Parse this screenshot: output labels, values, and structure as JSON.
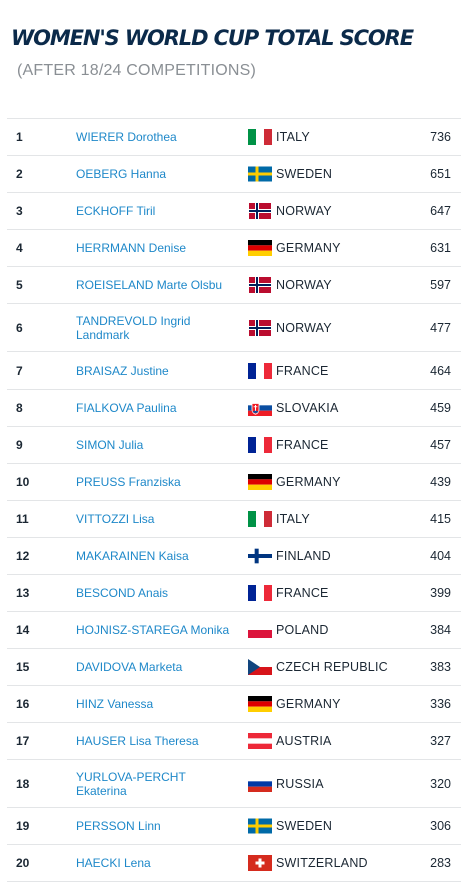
{
  "header": {
    "title": "WOMEN'S WORLD CUP TOTAL SCORE",
    "subtitle": "(AFTER 18/24 COMPETITIONS)"
  },
  "rows": [
    {
      "rank": "1",
      "name": "WIERER Dorothea",
      "country": "ITALY",
      "flag": "italy-flag",
      "score": "736"
    },
    {
      "rank": "2",
      "name": "OEBERG Hanna",
      "country": "SWEDEN",
      "flag": "sweden-flag",
      "score": "651"
    },
    {
      "rank": "3",
      "name": "ECKHOFF Tiril",
      "country": "NORWAY",
      "flag": "norway-flag",
      "score": "647"
    },
    {
      "rank": "4",
      "name": "HERRMANN Denise",
      "country": "GERMANY",
      "flag": "germany-flag",
      "score": "631"
    },
    {
      "rank": "5",
      "name": "ROEISELAND Marte Olsbu",
      "country": "NORWAY",
      "flag": "norway-flag",
      "score": "597"
    },
    {
      "rank": "6",
      "name": "TANDREVOLD Ingrid Landmark",
      "country": "NORWAY",
      "flag": "norway-flag",
      "score": "477"
    },
    {
      "rank": "7",
      "name": "BRAISAZ Justine",
      "country": "FRANCE",
      "flag": "france-flag",
      "score": "464"
    },
    {
      "rank": "8",
      "name": "FIALKOVA Paulina",
      "country": "SLOVAKIA",
      "flag": "slovakia-flag",
      "score": "459"
    },
    {
      "rank": "9",
      "name": "SIMON Julia",
      "country": "FRANCE",
      "flag": "france-flag",
      "score": "457"
    },
    {
      "rank": "10",
      "name": "PREUSS Franziska",
      "country": "GERMANY",
      "flag": "germany-flag",
      "score": "439"
    },
    {
      "rank": "11",
      "name": "VITTOZZI Lisa",
      "country": "ITALY",
      "flag": "italy-flag",
      "score": "415"
    },
    {
      "rank": "12",
      "name": "MAKARAINEN Kaisa",
      "country": "FINLAND",
      "flag": "finland-flag",
      "score": "404"
    },
    {
      "rank": "13",
      "name": "BESCOND Anais",
      "country": "FRANCE",
      "flag": "france-flag",
      "score": "399"
    },
    {
      "rank": "14",
      "name": "HOJNISZ-STAREGA Monika",
      "country": "POLAND",
      "flag": "poland-flag",
      "score": "384"
    },
    {
      "rank": "15",
      "name": "DAVIDOVA Marketa",
      "country": "CZECH REPUBLIC",
      "flag": "czech-republic-flag",
      "score": "383"
    },
    {
      "rank": "16",
      "name": "HINZ Vanessa",
      "country": "GERMANY",
      "flag": "germany-flag",
      "score": "336"
    },
    {
      "rank": "17",
      "name": "HAUSER Lisa Theresa",
      "country": "AUSTRIA",
      "flag": "austria-flag",
      "score": "327"
    },
    {
      "rank": "18",
      "name": "YURLOVA-PERCHT Ekaterina",
      "country": "RUSSIA",
      "flag": "russia-flag",
      "score": "320"
    },
    {
      "rank": "19",
      "name": "PERSSON Linn",
      "country": "SWEDEN",
      "flag": "sweden-flag",
      "score": "306"
    },
    {
      "rank": "20",
      "name": "HAECKI Lena",
      "country": "SWITZERLAND",
      "flag": "switzerland-flag",
      "score": "283"
    }
  ],
  "colors": {
    "title": "#0b2a4a",
    "link": "#1e88c9",
    "divider": "#e3e5e7"
  }
}
